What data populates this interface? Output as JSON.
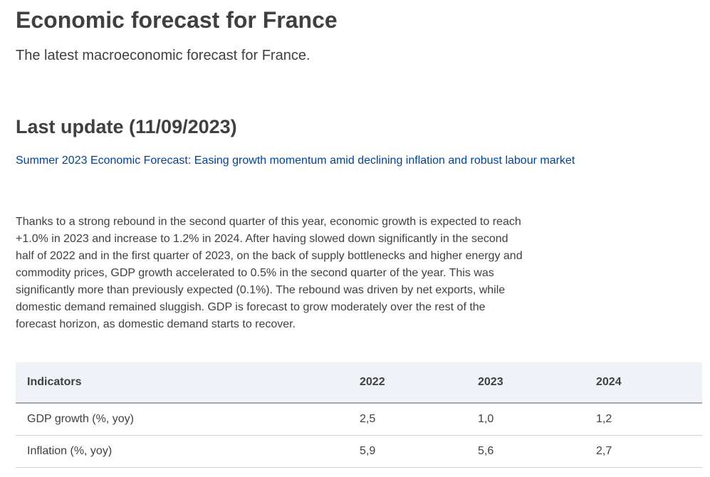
{
  "header": {
    "title": "Economic forecast for France",
    "subtitle": "The latest macroeconomic forecast for France."
  },
  "update": {
    "heading": "Last update (11/09/2023)",
    "link_text": "Summer 2023 Economic Forecast: Easing growth momentum amid declining inflation and robust labour market"
  },
  "summary_lines": [
    "Thanks to a strong rebound in the second quarter of this year, economic growth is expected to reach",
    "+1.0% in 2023 and increase to 1.2% in 2024. After having slowed down significantly in the second",
    "half of 2022 and in the first quarter of 2023, on the back of supply bottlenecks and higher energy and",
    "commodity prices, GDP growth accelerated to 0.5% in the second quarter of the year. This was",
    "significantly more than previously expected (0.1%). The rebound was driven by net exports, while",
    "domestic demand remained sluggish. GDP is forecast to grow moderately over the rest of the",
    "forecast horizon, as domestic demand starts to recover."
  ],
  "table": {
    "headers": [
      "Indicators",
      "2022",
      "2023",
      "2024"
    ],
    "rows": [
      [
        "GDP growth (%, yoy)",
        "2,5",
        "1,0",
        "1,2"
      ],
      [
        "Inflation (%, yoy)",
        "5,9",
        "5,6",
        "2,7"
      ]
    ]
  },
  "colors": {
    "text": "#404040",
    "link": "#004494",
    "table_header_bg": "#eff3f8"
  }
}
